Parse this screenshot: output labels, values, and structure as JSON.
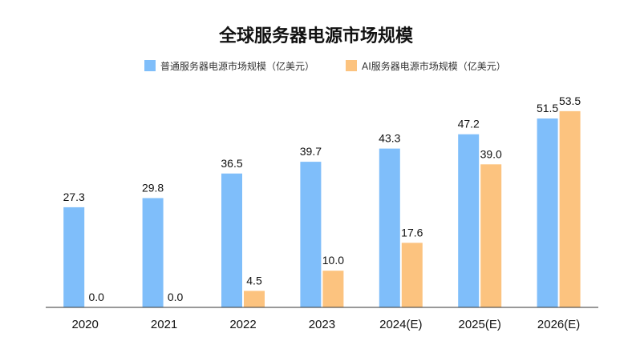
{
  "chart_data": {
    "type": "bar",
    "title": "全球服务器电源市场规模",
    "categories": [
      "2020",
      "2021",
      "2022",
      "2023",
      "2024(E)",
      "2025(E)",
      "2026(E)"
    ],
    "series": [
      {
        "name": "普通服务器电源市场规模（亿美元）",
        "color": "#7fbefa",
        "values": [
          27.3,
          29.8,
          36.5,
          39.7,
          43.3,
          47.2,
          51.5
        ],
        "labels": [
          "27.3",
          "29.8",
          "36.5",
          "39.7",
          "43.3",
          "47.2",
          "51.5"
        ]
      },
      {
        "name": "AI服务器电源市场规模（亿美元）",
        "color": "#fcc37f",
        "values": [
          0.0,
          0.0,
          4.5,
          10.0,
          17.6,
          39.0,
          53.5
        ],
        "labels": [
          "0.0",
          "0.0",
          "4.5",
          "10.0",
          "17.6",
          "39.0",
          "53.5"
        ]
      }
    ],
    "xlabel": "",
    "ylabel": "",
    "ylim": [
      0,
      55
    ],
    "grid": false,
    "legend_position": "top-center",
    "axis_color": "#333333"
  }
}
